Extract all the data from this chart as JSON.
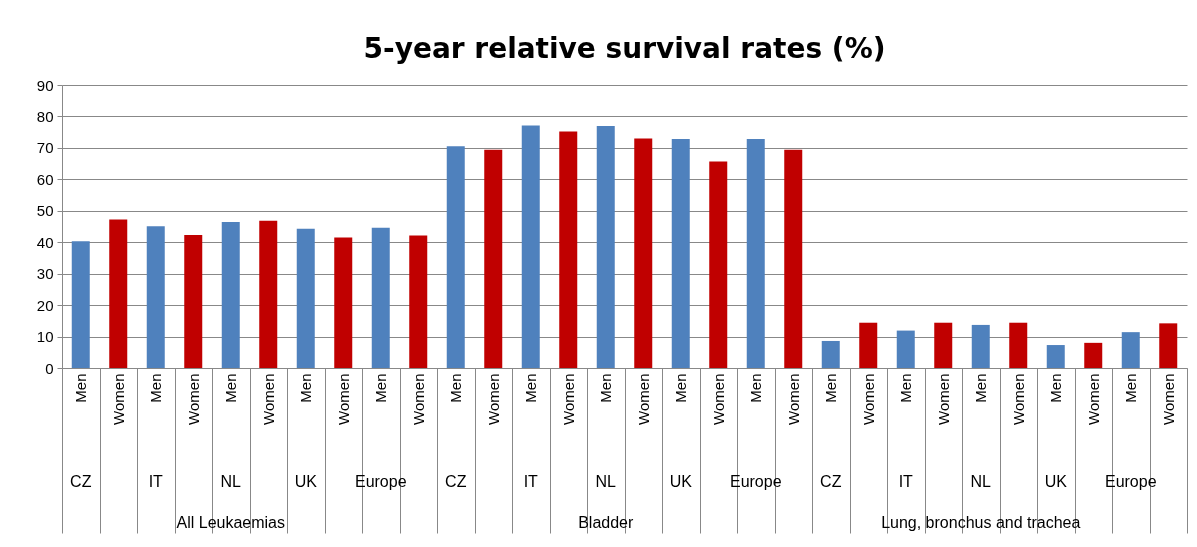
{
  "chart_data": {
    "type": "bar",
    "title": "5-year relative survival rates (%)",
    "categories": [
      "Men",
      "Women",
      "Men",
      "Women",
      "Men",
      "Women",
      "Men",
      "Women",
      "Men",
      "Women",
      "Men",
      "Women",
      "Men",
      "Women",
      "Men",
      "Women",
      "Men",
      "Women",
      "Men",
      "Women",
      "Men",
      "Women",
      "Men",
      "Women",
      "Men",
      "Women",
      "Men",
      "Women",
      "Men",
      "Women"
    ],
    "values": [
      40.3,
      47.2,
      45.1,
      42.3,
      46.4,
      46.8,
      44.3,
      41.5,
      44.6,
      42.1,
      70.5,
      69.4,
      77.1,
      75.2,
      77.0,
      73.0,
      72.8,
      65.7,
      72.8,
      69.4,
      8.6,
      14.4,
      11.9,
      14.4,
      13.7,
      14.4,
      7.3,
      8.0,
      11.4,
      14.2
    ],
    "colors": [
      "#4f81bd",
      "#c00000",
      "#4f81bd",
      "#c00000",
      "#4f81bd",
      "#c00000",
      "#4f81bd",
      "#c00000",
      "#4f81bd",
      "#c00000",
      "#4f81bd",
      "#c00000",
      "#4f81bd",
      "#c00000",
      "#4f81bd",
      "#c00000",
      "#4f81bd",
      "#c00000",
      "#4f81bd",
      "#c00000",
      "#4f81bd",
      "#c00000",
      "#4f81bd",
      "#c00000",
      "#4f81bd",
      "#c00000",
      "#4f81bd",
      "#c00000",
      "#4f81bd",
      "#c00000"
    ],
    "annotations": [
      "CZ",
      "IT",
      "NL",
      "UK",
      "Europe",
      "CZ",
      "IT",
      "NL",
      "UK",
      "Europe",
      "CZ",
      "IT",
      "NL",
      "UK",
      "Europe",
      "All Leukaemias",
      "Bladder",
      "Lung, bronchus and trachea"
    ],
    "ylim": [
      0,
      90
    ],
    "yticks": [
      0,
      10,
      20,
      30,
      40,
      50,
      60,
      70,
      80,
      90
    ],
    "grid": "y"
  }
}
